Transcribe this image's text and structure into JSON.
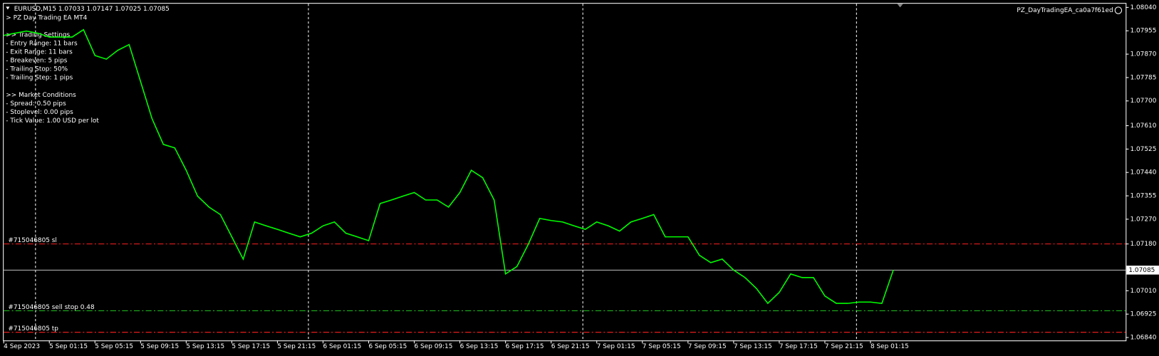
{
  "chart_data": {
    "type": "line",
    "title": "EURUSD,M15  1.07033 1.07147 1.07025 1.07085",
    "expert": "PZ_DayTradingEA_ca0a7f61ed",
    "info": {
      "title": "> PZ Day Trading EA MT4",
      "groups": [
        {
          "heading": ">> Trading Settings",
          "lines": [
            "- Entry Range: 11 bars",
            "- Exit Range: 11 bars",
            "- Breakeven: 5 pips",
            "- Trailing Stop: 50%",
            "- Trailing Step: 1 pips"
          ]
        },
        {
          "heading": ">> Market Conditions",
          "lines": [
            "- Spread: 0.50 pips",
            "- Stoplevel: 0.00 pips",
            "- Tick Value: 1.00 USD per lot"
          ]
        }
      ]
    },
    "categories": [
      "4 Sep 2023",
      null,
      null,
      null,
      "5 Sep 01:15",
      null,
      null,
      null,
      "5 Sep 05:15",
      null,
      null,
      null,
      "5 Sep 09:15",
      null,
      null,
      null,
      "5 Sep 13:15",
      null,
      null,
      null,
      "5 Sep 17:15",
      null,
      null,
      null,
      "5 Sep 21:15",
      null,
      null,
      null,
      "6 Sep 01:15",
      null,
      null,
      null,
      "6 Sep 05:15",
      null,
      null,
      null,
      "6 Sep 09:15",
      null,
      null,
      null,
      "6 Sep 13:15",
      null,
      null,
      null,
      "6 Sep 17:15",
      null,
      null,
      null,
      "6 Sep 21:15",
      null,
      null,
      null,
      "7 Sep 01:15",
      null,
      null,
      null,
      "7 Sep 05:15",
      null,
      null,
      null,
      "7 Sep 09:15",
      null,
      null,
      null,
      "7 Sep 13:15",
      null,
      null,
      null,
      "7 Sep 17:15",
      null,
      null,
      null,
      "7 Sep 21:15",
      null,
      null,
      null,
      "8 Sep 01:15",
      null,
      null
    ],
    "values": [
      1.07938,
      1.07946,
      1.07954,
      1.07946,
      1.07932,
      1.07932,
      1.07932,
      1.07959,
      1.07865,
      1.07852,
      1.07884,
      1.07905,
      1.07771,
      1.07636,
      1.07542,
      1.07529,
      1.07448,
      1.07354,
      1.07314,
      1.07287,
      1.07206,
      1.07125,
      1.0726,
      1.07246,
      1.07233,
      1.07219,
      1.07206,
      1.07219,
      1.07246,
      1.0726,
      1.07219,
      1.07206,
      1.07192,
      1.07327,
      1.0734,
      1.07354,
      1.07367,
      1.0734,
      1.0734,
      1.07314,
      1.07367,
      1.07448,
      1.07421,
      1.0734,
      1.07071,
      1.07098,
      1.07179,
      1.07273,
      1.07265,
      1.0726,
      1.07246,
      1.07233,
      1.0726,
      1.07246,
      1.07227,
      1.0726,
      1.07273,
      1.07287,
      1.07206,
      1.07206,
      1.07206,
      1.07139,
      1.07112,
      1.07125,
      1.07085,
      1.07058,
      1.07018,
      1.06964,
      1.07004,
      1.07071,
      1.07058,
      1.07058,
      1.06991,
      1.06964,
      1.06964,
      1.06969,
      1.06969,
      1.06964,
      1.07085
    ],
    "color": "#00ff00",
    "ylim": [
      1.0684,
      1.0804
    ],
    "yticks": [
      {
        "value": 1.0804,
        "label": "1.08040"
      },
      {
        "value": 1.07955,
        "label": "1.07955"
      },
      {
        "value": 1.0787,
        "label": "1.07870"
      },
      {
        "value": 1.07785,
        "label": "1.07785"
      },
      {
        "value": 1.077,
        "label": "1.07700"
      },
      {
        "value": 1.0761,
        "label": "1.07610"
      },
      {
        "value": 1.07525,
        "label": "1.07525"
      },
      {
        "value": 1.0744,
        "label": "1.07440"
      },
      {
        "value": 1.07355,
        "label": "1.07355"
      },
      {
        "value": 1.0727,
        "label": "1.07270"
      },
      {
        "value": 1.0718,
        "label": "1.07180"
      },
      {
        "value": 1.0701,
        "label": "1.07010"
      },
      {
        "value": 1.06925,
        "label": "1.06925"
      },
      {
        "value": 1.0684,
        "label": "1.06840"
      }
    ],
    "current_price": {
      "value": 1.07085,
      "label": "1.07085",
      "color": "#c0c0c0"
    },
    "levels": [
      {
        "label": "#715046805 sl",
        "value": 1.0718,
        "color": "#ff2020"
      },
      {
        "label": "#715046805 sell stop 0.48",
        "value": 1.06937,
        "color": "#20c020"
      },
      {
        "label": "#715046805 tp",
        "value": 1.06859,
        "color": "#ff2020"
      }
    ]
  }
}
